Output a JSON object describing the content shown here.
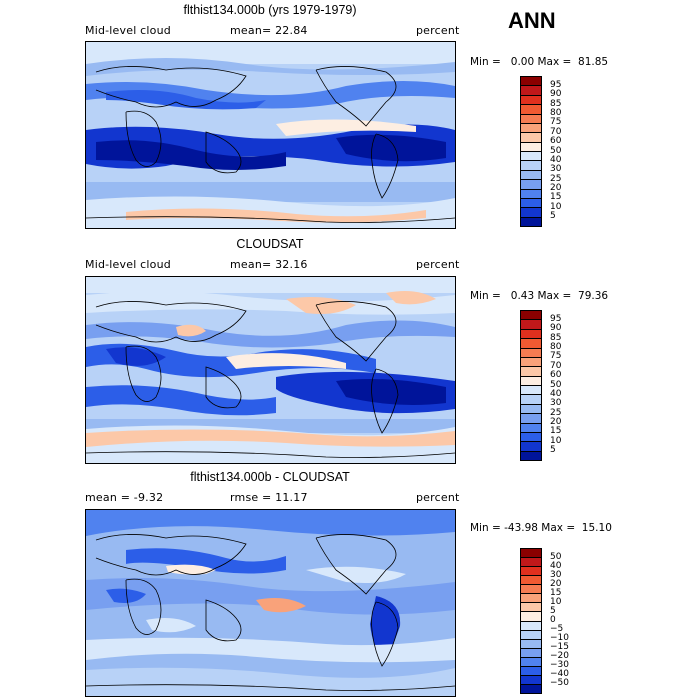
{
  "season_label": "ANN",
  "panels": [
    {
      "title": "flthist134.000b (yrs 1979-1979)",
      "variable": "Mid-level cloud",
      "stat": "mean=  22.84",
      "units": "percent",
      "minmax": "Min =   0.00 Max =  81.85",
      "colorbar_labels": [
        "95",
        "90",
        "85",
        "80",
        "75",
        "70",
        "60",
        "50",
        "40",
        "30",
        "25",
        "20",
        "15",
        "10",
        "5"
      ],
      "colorbar_colors": [
        "#8b0000",
        "#c0181a",
        "#e0301e",
        "#f05a32",
        "#f57c52",
        "#f9a27a",
        "#fcc8a8",
        "#fdeee2",
        "#d8e8fb",
        "#b8d2f7",
        "#98baf2",
        "#789ff0",
        "#5082ef",
        "#2c5ee8",
        "#1236cf",
        "#00149a"
      ]
    },
    {
      "title": "CLOUDSAT",
      "variable": "Mid-level cloud",
      "stat": "mean=  32.16",
      "units": "percent",
      "minmax": "Min =   0.43 Max =  79.36",
      "colorbar_labels": [
        "95",
        "90",
        "85",
        "80",
        "75",
        "70",
        "60",
        "50",
        "40",
        "30",
        "25",
        "20",
        "15",
        "10",
        "5"
      ],
      "colorbar_colors": [
        "#8b0000",
        "#c0181a",
        "#e0301e",
        "#f05a32",
        "#f57c52",
        "#f9a27a",
        "#fcc8a8",
        "#fdeee2",
        "#d8e8fb",
        "#b8d2f7",
        "#98baf2",
        "#789ff0",
        "#5082ef",
        "#2c5ee8",
        "#1236cf",
        "#00149a"
      ]
    },
    {
      "title": "flthist134.000b - CLOUDSAT",
      "variable": "mean =   -9.32",
      "stat": "rmse =   11.17",
      "units": "percent",
      "minmax": "Min = -43.98 Max =  15.10",
      "colorbar_labels": [
        "50",
        "40",
        "30",
        "20",
        "15",
        "10",
        "5",
        "0",
        "−5",
        "−10",
        "−15",
        "−20",
        "−30",
        "−40",
        "−50"
      ],
      "colorbar_colors": [
        "#8b0000",
        "#c0181a",
        "#e0301e",
        "#f05a32",
        "#f57c52",
        "#f9a27a",
        "#fcc8a8",
        "#fdeee2",
        "#d8e8fb",
        "#b8d2f7",
        "#98baf2",
        "#789ff0",
        "#5082ef",
        "#2c5ee8",
        "#1236cf",
        "#00149a"
      ]
    }
  ]
}
